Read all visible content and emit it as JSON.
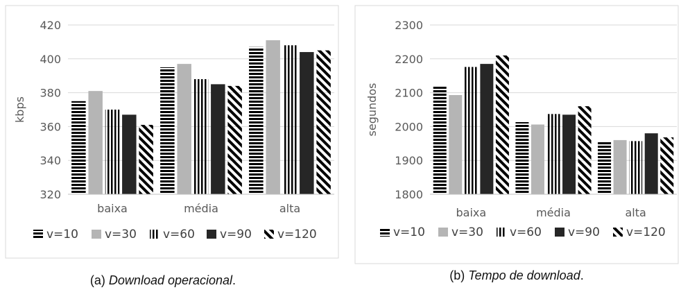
{
  "legend": [
    "v=10",
    "v=30",
    "v=60",
    "v=90",
    "v=120"
  ],
  "chart_data": [
    {
      "type": "bar",
      "caption_prefix": "(a) ",
      "caption_italic": "Download operacional",
      "caption_suffix": ".",
      "ylabel": "kbps",
      "ylim": [
        320,
        420
      ],
      "yticks": [
        320,
        340,
        360,
        380,
        400,
        420
      ],
      "grid": true,
      "legend_position": "bottom",
      "categories": [
        "baixa",
        "média",
        "alta"
      ],
      "series": [
        {
          "name": "v=10",
          "values": [
            375,
            395,
            407
          ]
        },
        {
          "name": "v=30",
          "values": [
            381,
            397,
            411
          ]
        },
        {
          "name": "v=60",
          "values": [
            370,
            388,
            408
          ]
        },
        {
          "name": "v=90",
          "values": [
            367,
            385,
            404
          ]
        },
        {
          "name": "v=120",
          "values": [
            361,
            384,
            405
          ]
        }
      ]
    },
    {
      "type": "bar",
      "caption_prefix": "(b) ",
      "caption_italic": "Tempo de download",
      "caption_suffix": ".",
      "ylabel": "segundos",
      "ylim": [
        1800,
        2300
      ],
      "yticks": [
        1800,
        1900,
        2000,
        2100,
        2200,
        2300
      ],
      "grid": true,
      "legend_position": "bottom",
      "categories": [
        "baixa",
        "média",
        "alta"
      ],
      "series": [
        {
          "name": "v=10",
          "values": [
            2120,
            2013,
            1955
          ]
        },
        {
          "name": "v=30",
          "values": [
            2093,
            2006,
            1960
          ]
        },
        {
          "name": "v=60",
          "values": [
            2176,
            2037,
            1957
          ]
        },
        {
          "name": "v=90",
          "values": [
            2185,
            2035,
            1980
          ]
        },
        {
          "name": "v=120",
          "values": [
            2210,
            2060,
            1968
          ]
        }
      ]
    }
  ]
}
